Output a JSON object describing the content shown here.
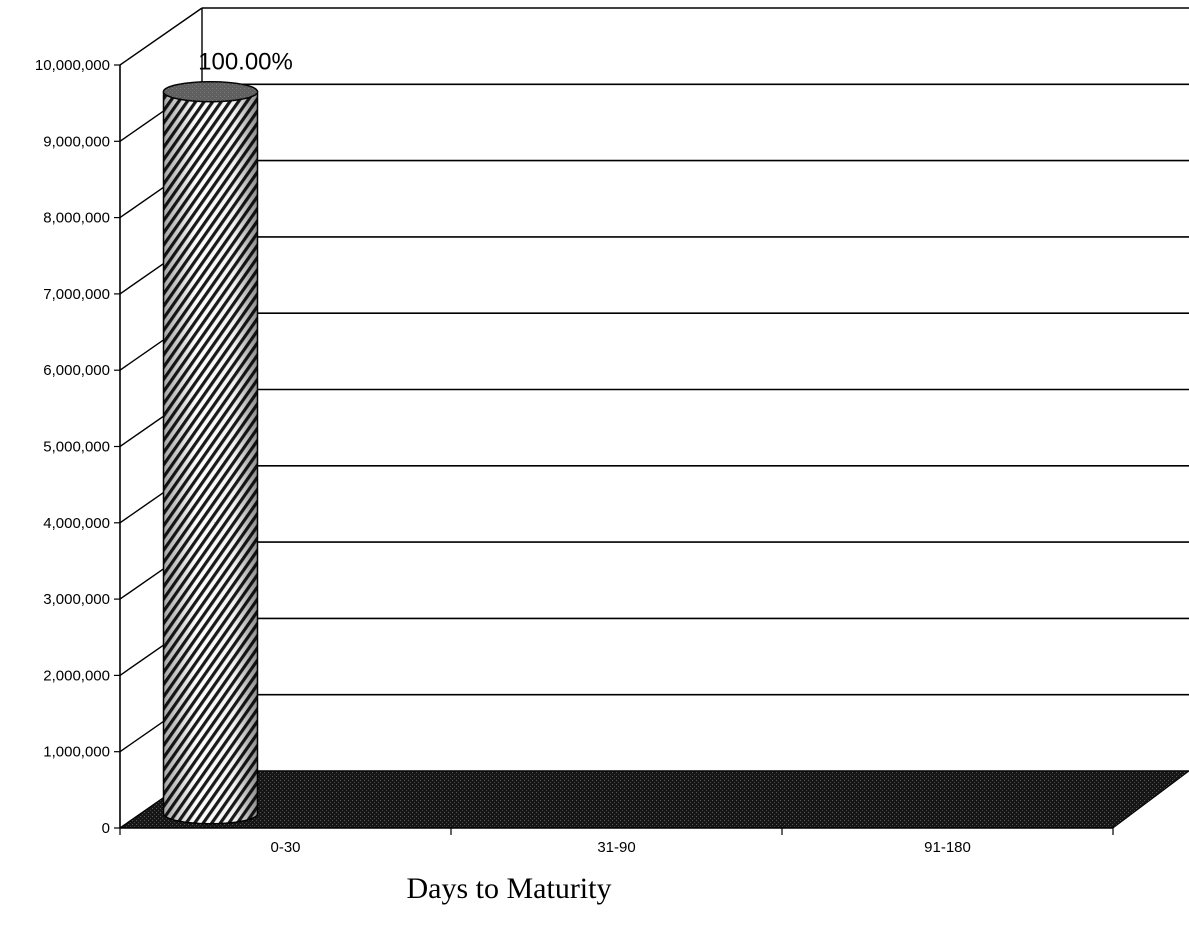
{
  "chart_data": {
    "type": "bar",
    "subtype": "3d-cylinder",
    "title": "",
    "xlabel": "Days to Maturity",
    "ylabel": "",
    "categories": [
      "0-30",
      "31-90",
      "91-180"
    ],
    "series": [
      {
        "values": [
          9650000,
          0,
          0
        ],
        "data_labels": [
          "100.00%",
          "",
          ""
        ]
      }
    ],
    "ylim": [
      0,
      10000000
    ],
    "yticks": [
      0,
      1000000,
      2000000,
      3000000,
      4000000,
      5000000,
      6000000,
      7000000,
      8000000,
      9000000,
      10000000
    ],
    "ytick_labels": [
      "0",
      "1,000,000",
      "2,000,000",
      "3,000,000",
      "4,000,000",
      "5,000,000",
      "6,000,000",
      "7,000,000",
      "8,000,000",
      "9,000,000",
      "10,000,000"
    ],
    "grid": true,
    "legend": "none",
    "floor_color": "#1a1a1a",
    "bar_pattern": "diagonal-hatch"
  }
}
